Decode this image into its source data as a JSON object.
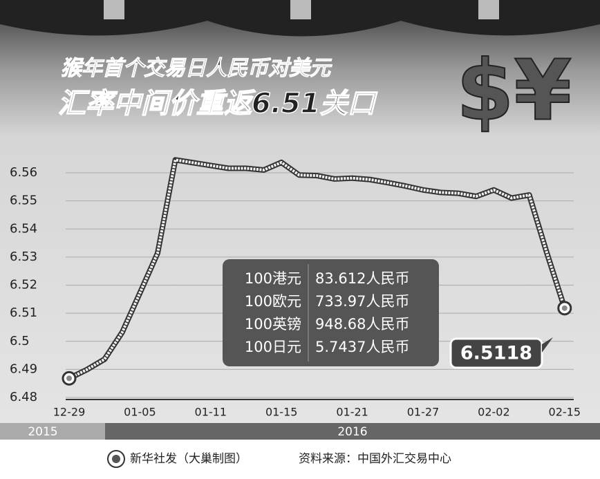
{
  "chart_data": {
    "type": "line",
    "title": "猴年首个交易日人民币对美元",
    "subtitle": "汇率中间价重返6.51关口",
    "logo": "$¥",
    "categories": [
      "12-29",
      null,
      null,
      null,
      "01-05",
      null,
      null,
      null,
      "01-11",
      null,
      null,
      null,
      "01-15",
      null,
      null,
      null,
      "01-21",
      null,
      null,
      null,
      "01-27",
      null,
      null,
      null,
      "02-02",
      null,
      null,
      null,
      "02-15"
    ],
    "values": [
      6.4868,
      6.4899,
      6.4936,
      6.5032,
      6.5172,
      6.5314,
      6.5646,
      6.5636,
      6.5626,
      6.5616,
      6.5616,
      6.561,
      6.5637,
      6.5592,
      6.559,
      6.5578,
      6.5581,
      6.5576,
      6.5565,
      6.5553,
      6.5539,
      6.553,
      6.5527,
      6.5516,
      6.5539,
      6.551,
      6.5521,
      6.5314,
      6.5118
    ],
    "color": "#f2f2f2",
    "ylim": [
      6.48,
      6.56
    ],
    "yticks": [
      6.48,
      6.49,
      6.5,
      6.51,
      6.52,
      6.53,
      6.54,
      6.55,
      6.56
    ],
    "grid": true,
    "table": {
      "rows": [
        [
          "100港元",
          "83.612人民币"
        ],
        [
          "100欧元",
          "733.97人民币"
        ],
        [
          "100英镑",
          "948.68人民币"
        ],
        [
          "100日元",
          "5.7437人民币"
        ]
      ]
    },
    "years": [
      "2015",
      "2016"
    ],
    "credit": "新华社发（大巢制图）",
    "source": "资料来源：中国外汇交易中心"
  }
}
